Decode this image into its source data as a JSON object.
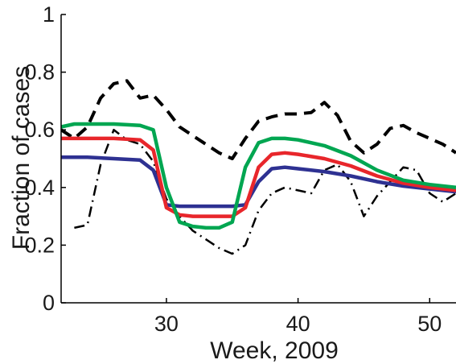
{
  "chart_data": {
    "type": "line",
    "title": "",
    "xlabel": "Week, 2009",
    "ylabel": "Fraction of cases",
    "xlim": [
      22,
      52
    ],
    "ylim": [
      0,
      1
    ],
    "x_ticks": [
      30,
      40,
      50
    ],
    "y_ticks": [
      0,
      0.2,
      0.4,
      0.6,
      0.8,
      1
    ],
    "x_tick_labels": [
      "30",
      "40",
      "50"
    ],
    "y_tick_labels": [
      "0",
      "0.2",
      "0.4",
      "0.6",
      "0.8",
      "1"
    ],
    "grid": false,
    "legend": "none",
    "series": [
      {
        "style": "dashed",
        "color": "#000000",
        "x": [
          22,
          23,
          24,
          25,
          26,
          27,
          28,
          29,
          30,
          31,
          32,
          33,
          34,
          35,
          36,
          37,
          38,
          39,
          40,
          41,
          42,
          43,
          44,
          45,
          46,
          47,
          48,
          49,
          50,
          51,
          52
        ],
        "y": [
          0.6,
          0.57,
          0.61,
          0.71,
          0.76,
          0.77,
          0.71,
          0.72,
          0.67,
          0.61,
          0.58,
          0.55,
          0.52,
          0.5,
          0.57,
          0.63,
          0.645,
          0.655,
          0.655,
          0.66,
          0.695,
          0.65,
          0.56,
          0.52,
          0.55,
          0.605,
          0.615,
          0.59,
          0.57,
          0.55,
          0.52
        ]
      },
      {
        "style": "dashdot",
        "color": "#000000",
        "x": [
          23,
          24,
          25,
          26,
          27,
          28,
          29,
          30,
          31,
          32,
          33,
          34,
          35,
          36,
          37,
          38,
          39,
          40,
          41,
          42,
          43,
          44,
          45,
          46,
          47,
          48,
          49,
          50,
          51,
          52
        ],
        "y": [
          0.26,
          0.27,
          0.48,
          0.6,
          0.565,
          0.55,
          0.49,
          0.36,
          0.3,
          0.25,
          0.22,
          0.19,
          0.17,
          0.2,
          0.32,
          0.38,
          0.4,
          0.39,
          0.38,
          0.46,
          0.48,
          0.42,
          0.3,
          0.37,
          0.42,
          0.47,
          0.46,
          0.38,
          0.35,
          0.38
        ]
      },
      {
        "color": "#2e3192",
        "x": [
          22,
          24,
          26,
          28,
          29,
          30,
          31,
          32,
          33,
          34,
          35,
          36,
          37,
          38,
          39,
          40,
          42,
          44,
          46,
          48,
          50,
          52
        ],
        "y": [
          0.505,
          0.505,
          0.5,
          0.495,
          0.46,
          0.34,
          0.335,
          0.335,
          0.335,
          0.335,
          0.335,
          0.34,
          0.42,
          0.465,
          0.47,
          0.465,
          0.455,
          0.44,
          0.42,
          0.405,
          0.395,
          0.385
        ]
      },
      {
        "color": "#e8262b",
        "x": [
          22,
          24,
          26,
          28,
          29,
          30,
          31,
          32,
          33,
          34,
          35,
          36,
          37,
          38,
          39,
          40,
          42,
          44,
          46,
          48,
          50,
          52
        ],
        "y": [
          0.57,
          0.57,
          0.57,
          0.565,
          0.53,
          0.33,
          0.305,
          0.3,
          0.3,
          0.3,
          0.3,
          0.33,
          0.47,
          0.515,
          0.52,
          0.515,
          0.5,
          0.475,
          0.44,
          0.415,
          0.4,
          0.39
        ]
      },
      {
        "color": "#00a651",
        "x": [
          22,
          23,
          24,
          26,
          28,
          29,
          30,
          31,
          32,
          33,
          34,
          35,
          36,
          37,
          38,
          39,
          40,
          42,
          44,
          46,
          48,
          50,
          52
        ],
        "y": [
          0.61,
          0.62,
          0.62,
          0.62,
          0.615,
          0.6,
          0.4,
          0.28,
          0.265,
          0.26,
          0.26,
          0.28,
          0.47,
          0.555,
          0.57,
          0.57,
          0.565,
          0.545,
          0.51,
          0.46,
          0.425,
          0.41,
          0.4
        ]
      }
    ]
  }
}
